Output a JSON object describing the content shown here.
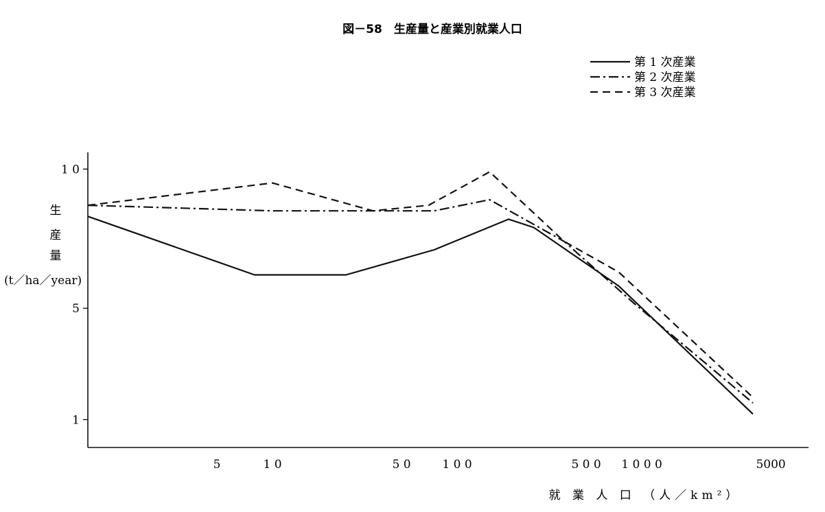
{
  "chart_data": {
    "type": "line",
    "title": "図－58　生産量と産業別就業人口",
    "xlabel": "就 業 人 口 （人／km²）",
    "ylabel_lines": [
      "生",
      "産",
      "量",
      "(t／ha／year)"
    ],
    "x_scale": "log",
    "xlim": [
      1,
      8000
    ],
    "ylim": [
      0,
      10.6
    ],
    "x_ticks": [
      {
        "value": 5,
        "label": "5"
      },
      {
        "value": 10,
        "label": "1 0"
      },
      {
        "value": 50,
        "label": "5 0"
      },
      {
        "value": 100,
        "label": "1 0 0"
      },
      {
        "value": 500,
        "label": "5 0 0"
      },
      {
        "value": 1000,
        "label": "1 0 0 0"
      },
      {
        "value": 5000,
        "label": "5000"
      }
    ],
    "y_ticks": [
      {
        "value": 10,
        "label": "1 0"
      },
      {
        "value": 5,
        "label": "5"
      },
      {
        "value": 1,
        "label": "1"
      }
    ],
    "grid": false,
    "legend_position": "top-right",
    "series": [
      {
        "name": "第 1 次産業",
        "dash": "solid",
        "points": [
          [
            1,
            8.3
          ],
          [
            8,
            6.2
          ],
          [
            25,
            6.2
          ],
          [
            75,
            7.1
          ],
          [
            190,
            8.2
          ],
          [
            260,
            7.9
          ],
          [
            750,
            5.8
          ],
          [
            4000,
            1.2
          ]
        ]
      },
      {
        "name": "第 2 次産業",
        "dash": "dashdot",
        "points": [
          [
            1,
            8.7
          ],
          [
            10,
            8.5
          ],
          [
            35,
            8.5
          ],
          [
            75,
            8.5
          ],
          [
            150,
            8.9
          ],
          [
            380,
            7.4
          ],
          [
            900,
            5.2
          ],
          [
            4000,
            1.6
          ]
        ]
      },
      {
        "name": "第 3 次産業",
        "dash": "dashed",
        "points": [
          [
            1,
            8.7
          ],
          [
            10,
            9.5
          ],
          [
            35,
            8.5
          ],
          [
            70,
            8.7
          ],
          [
            150,
            9.9
          ],
          [
            380,
            7.4
          ],
          [
            750,
            6.3
          ],
          [
            4000,
            1.8
          ]
        ]
      }
    ]
  }
}
